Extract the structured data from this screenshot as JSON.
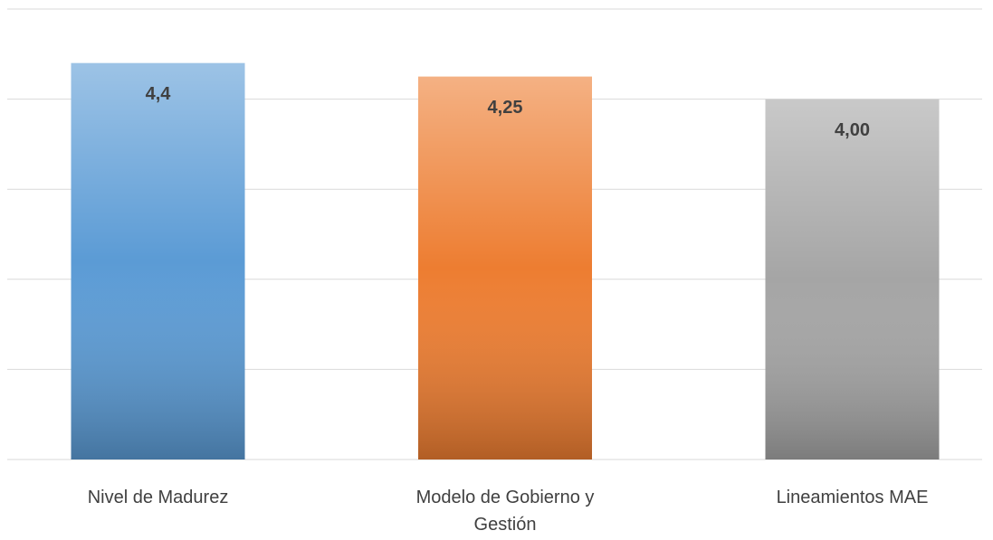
{
  "chart_data": {
    "type": "bar",
    "categories": [
      "Nivel de Madurez",
      "Modelo de Gobierno y Gestión",
      "Lineamientos MAE"
    ],
    "values": [
      4.4,
      4.25,
      4.0
    ],
    "value_labels": [
      "4,4",
      "4,25",
      "4,00"
    ],
    "colors": [
      "#5b9bd5",
      "#ed7d31",
      "#a5a5a5"
    ],
    "ylim": [
      0,
      5
    ],
    "yticks": [
      0,
      1,
      2,
      3,
      4,
      5
    ],
    "grid": true
  }
}
